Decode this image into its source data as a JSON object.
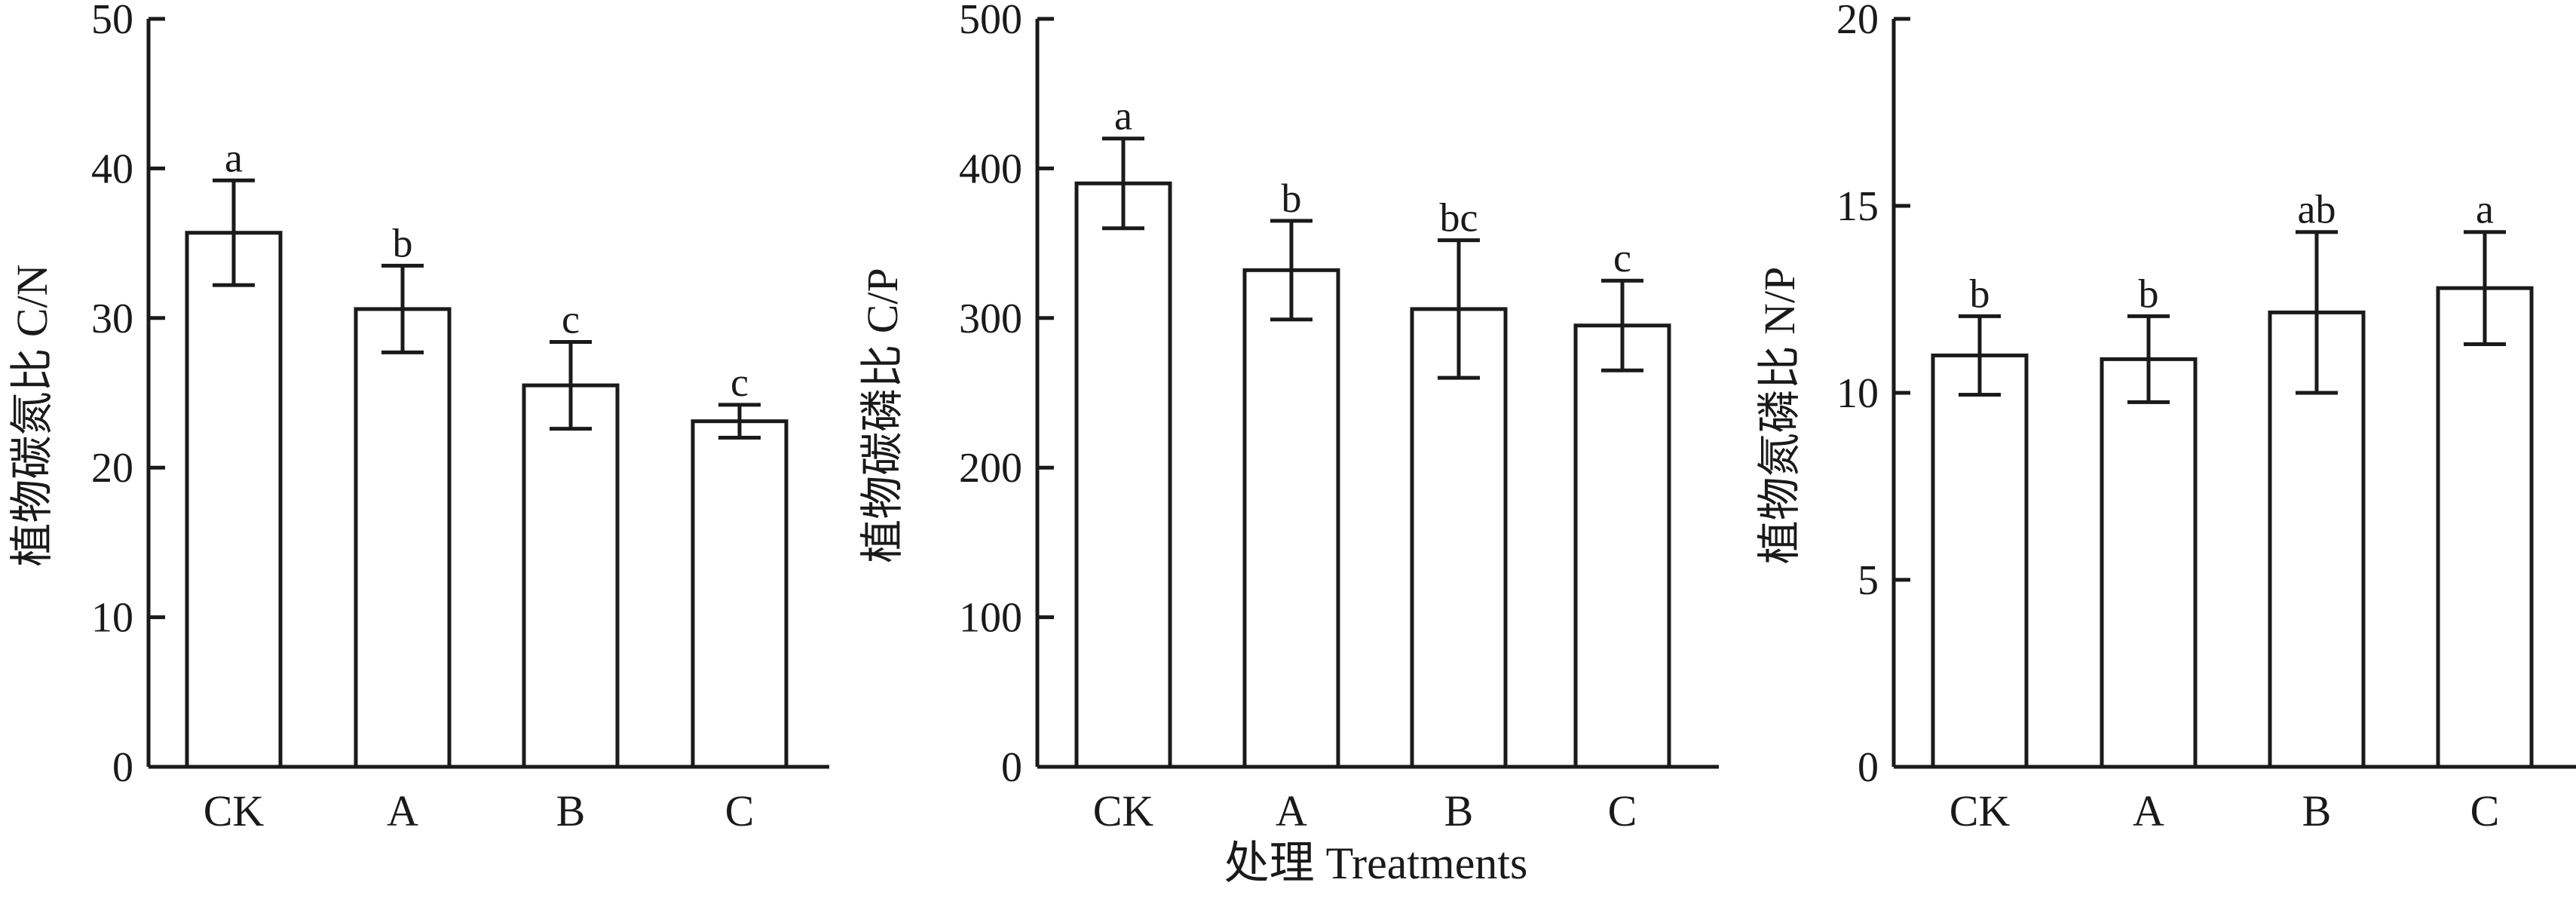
{
  "figure": {
    "xlabel": "处理 Treatments"
  },
  "chart_data": [
    {
      "type": "bar",
      "ylabel": "植物碳氮比 C/N",
      "categories": [
        "CK",
        "A",
        "B",
        "C"
      ],
      "values": [
        35.7,
        30.6,
        25.5,
        23.1
      ],
      "errors": [
        3.5,
        2.9,
        2.9,
        1.1
      ],
      "significance": [
        "a",
        "b",
        "c",
        "c"
      ],
      "ylim": [
        0,
        50
      ],
      "yticks": [
        "0",
        "10",
        "20",
        "30",
        "40",
        "50"
      ],
      "grid": false
    },
    {
      "type": "bar",
      "ylabel": "植物碳磷比 C/P",
      "categories": [
        "CK",
        "A",
        "B",
        "C"
      ],
      "values": [
        390,
        332,
        306,
        295
      ],
      "errors": [
        30,
        33,
        46,
        30
      ],
      "significance": [
        "a",
        "b",
        "bc",
        "c"
      ],
      "ylim": [
        0,
        500
      ],
      "yticks": [
        "0",
        "100",
        "200",
        "300",
        "400",
        "500"
      ],
      "grid": false
    },
    {
      "type": "bar",
      "ylabel": "植物氮磷比 N/P",
      "categories": [
        "CK",
        "A",
        "B",
        "C"
      ],
      "values": [
        11.0,
        10.9,
        12.15,
        12.8
      ],
      "errors": [
        1.05,
        1.15,
        2.15,
        1.5
      ],
      "significance": [
        "b",
        "b",
        "ab",
        "a"
      ],
      "ylim": [
        0,
        20
      ],
      "yticks": [
        "0",
        "5",
        "10",
        "15",
        "20"
      ],
      "grid": false
    }
  ]
}
